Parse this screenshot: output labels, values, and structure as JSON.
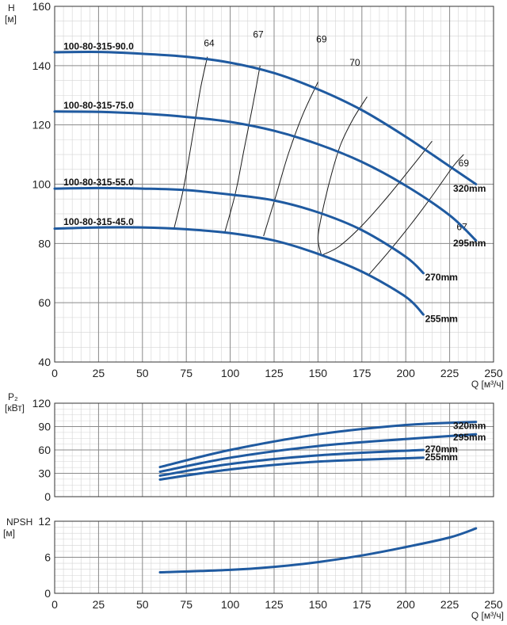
{
  "chart_data": [
    {
      "type": "line",
      "id": "head",
      "ylabel": "H",
      "yunit": "[м]",
      "xlabel": "Q [м³/ч]",
      "xlim": [
        0,
        250
      ],
      "ylim": [
        40,
        160
      ],
      "xticks": [
        0,
        25,
        50,
        75,
        100,
        125,
        150,
        175,
        200,
        225,
        250
      ],
      "yticks": [
        40,
        60,
        80,
        100,
        120,
        140,
        160
      ],
      "grid": true,
      "series": [
        {
          "name": "320mm",
          "x": [
            0,
            25,
            50,
            75,
            100,
            125,
            150,
            175,
            200,
            225,
            240
          ],
          "y": [
            144.5,
            144.6,
            144,
            143,
            141,
            137.5,
            132,
            125,
            116,
            106,
            100
          ]
        },
        {
          "name": "295mm",
          "x": [
            0,
            25,
            50,
            75,
            100,
            125,
            150,
            175,
            200,
            225,
            240
          ],
          "y": [
            124.5,
            124.4,
            123.8,
            122.7,
            121,
            118,
            113.5,
            107.5,
            99.5,
            89.5,
            81
          ]
        },
        {
          "name": "270mm",
          "x": [
            0,
            25,
            50,
            75,
            100,
            125,
            150,
            175,
            200,
            210
          ],
          "y": [
            98.5,
            98.7,
            98.5,
            98,
            96.5,
            94.5,
            90.5,
            84.5,
            75.5,
            70
          ]
        },
        {
          "name": "255mm",
          "x": [
            0,
            25,
            50,
            75,
            100,
            125,
            150,
            175,
            200,
            210
          ],
          "y": [
            85,
            85.4,
            85.4,
            84.8,
            83.5,
            81,
            76.5,
            70.5,
            62,
            56
          ]
        }
      ],
      "curve_labels": [
        {
          "text": "100-80-315-90.0",
          "x": 5,
          "y": 145.5
        },
        {
          "text": "100-80-315-75.0",
          "x": 5,
          "y": 125.5
        },
        {
          "text": "100-80-315-55.0",
          "x": 5,
          "y": 99.6
        },
        {
          "text": "100-80-315-45.0",
          "x": 5,
          "y": 86.2
        }
      ],
      "size_labels": [
        {
          "text": "320mm",
          "x": 227,
          "y": 97.5
        },
        {
          "text": "295mm",
          "x": 227,
          "y": 79
        },
        {
          "text": "270mm",
          "x": 211,
          "y": 67.5
        },
        {
          "text": "255mm",
          "x": 211,
          "y": 53.5
        }
      ],
      "efficiency_lines": [
        {
          "label": "64",
          "label_x": 88,
          "label_y": 146.5,
          "x": [
            68,
            73,
            78,
            83,
            87
          ],
          "y": [
            85,
            97.5,
            114,
            132,
            143
          ]
        },
        {
          "label": "67",
          "label_x": 116,
          "label_y": 149.5,
          "x": [
            97,
            103,
            108,
            113,
            117
          ],
          "y": [
            84,
            97,
            112,
            127,
            140
          ]
        },
        {
          "label": "69",
          "label_x": 152,
          "label_y": 147.8,
          "x": [
            119,
            126,
            133,
            141,
            150
          ],
          "y": [
            82.5,
            96,
            110,
            123,
            134.5
          ]
        },
        {
          "label": "70",
          "label_x": 171,
          "label_y": 140,
          "x": [
            152,
            150,
            153,
            158,
            163,
            170,
            178
          ],
          "y": [
            76,
            82,
            92,
            104,
            113.5,
            122,
            129.5
          ]
        },
        {
          "label": "69",
          "label_x": 233,
          "label_y": 106,
          "x": [
            152,
            162,
            175,
            190,
            205,
            215
          ],
          "y": [
            76,
            79,
            86,
            96,
            107,
            114.5
          ]
        },
        {
          "label": "67",
          "label_x": 232,
          "label_y": 84.5,
          "x": [
            179,
            190,
            203,
            215,
            227,
            233
          ],
          "y": [
            69.5,
            77,
            86.5,
            96,
            106,
            110
          ]
        }
      ]
    },
    {
      "type": "line",
      "id": "power",
      "ylabel": "P₂",
      "yunit": "[кВт]",
      "xlim": [
        0,
        250
      ],
      "ylim": [
        0,
        120
      ],
      "xticks": [
        0,
        25,
        50,
        75,
        100,
        125,
        150,
        175,
        200,
        225,
        250
      ],
      "yticks": [
        0,
        30,
        60,
        90,
        120
      ],
      "grid": true,
      "series": [
        {
          "name": "320mm",
          "x": [
            60,
            100,
            150,
            200,
            240
          ],
          "y": [
            38,
            60,
            80,
            92,
            96
          ]
        },
        {
          "name": "295mm",
          "x": [
            60,
            100,
            150,
            200,
            240
          ],
          "y": [
            32,
            50,
            65,
            74,
            80
          ]
        },
        {
          "name": "270mm",
          "x": [
            60,
            100,
            150,
            210
          ],
          "y": [
            27,
            42,
            53,
            60
          ]
        },
        {
          "name": "255mm",
          "x": [
            60,
            100,
            150,
            210
          ],
          "y": [
            22,
            35,
            45,
            50
          ]
        }
      ],
      "size_labels": [
        {
          "text": "320mm",
          "x": 227,
          "y": 87
        },
        {
          "text": "295mm",
          "x": 227,
          "y": 72
        },
        {
          "text": "270mm",
          "x": 211,
          "y": 57
        },
        {
          "text": "255mm",
          "x": 211,
          "y": 47
        }
      ]
    },
    {
      "type": "line",
      "id": "npsh",
      "ylabel": "NPSH",
      "yunit": "[м]",
      "xlabel": "Q [м³/ч]",
      "xlim": [
        0,
        250
      ],
      "ylim": [
        0,
        12
      ],
      "xticks": [
        0,
        25,
        50,
        75,
        100,
        125,
        150,
        175,
        200,
        225,
        250
      ],
      "yticks": [
        0,
        6,
        12
      ],
      "grid": true,
      "series": [
        {
          "name": "",
          "x": [
            60,
            100,
            125,
            150,
            175,
            200,
            225,
            240
          ],
          "y": [
            3.5,
            3.9,
            4.4,
            5.2,
            6.3,
            7.7,
            9.3,
            10.8
          ]
        }
      ]
    }
  ],
  "colors": {
    "curve": "#1f5aa0",
    "grid_minor": "#d4d4d4",
    "grid_major": "#8a8a8a",
    "iso": "#1a1a1a"
  }
}
